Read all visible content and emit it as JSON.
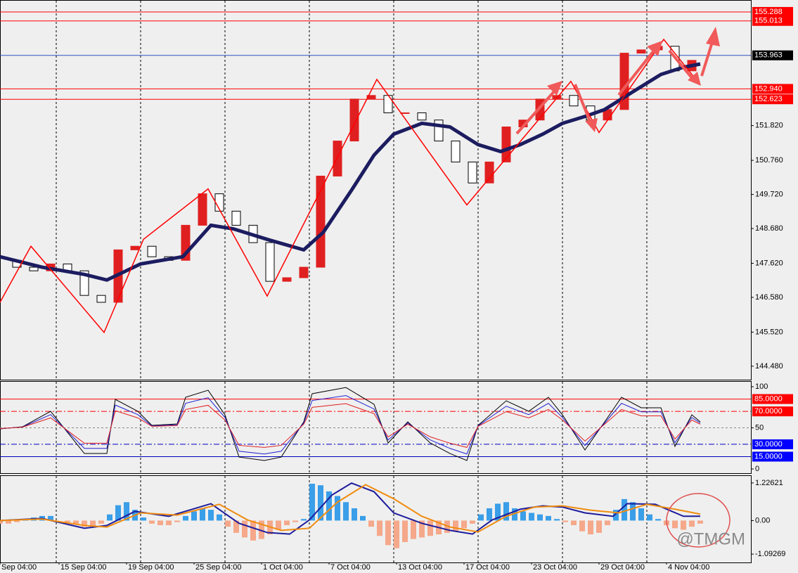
{
  "chart_data": [
    {
      "type": "candlestick",
      "x": [
        0,
        6,
        12,
        18,
        24,
        30,
        36,
        42,
        48,
        54,
        60,
        66,
        72,
        78,
        84,
        90,
        96,
        102,
        108,
        114,
        120,
        126,
        132,
        138,
        144,
        150,
        156,
        162,
        168,
        174,
        180,
        186,
        192,
        198,
        204,
        210,
        216,
        222,
        228,
        234,
        240,
        246
      ],
      "values": [
        147.71,
        147.5,
        147.39,
        147.6,
        147.39,
        146.64,
        146.43,
        148.03,
        148.14,
        147.82,
        147.71,
        148.78,
        149.74,
        149.21,
        148.78,
        148.25,
        147.07,
        147.18,
        147.5,
        150.28,
        151.35,
        152.63,
        152.74,
        152.21,
        152.21,
        151.99,
        151.35,
        150.71,
        150.07,
        150.71,
        151.78,
        151.99,
        152.63,
        152.74,
        152.42,
        151.99,
        152.31,
        154.03,
        154.13,
        154.24,
        153.49,
        153.81
      ],
      "up_color": "#e02020",
      "down_color": "#000000",
      "xlim": [
        0,
        267
      ],
      "ylim": [
        144.07,
        155.63
      ],
      "yticks": [
        {
          "value": 144.48,
          "label": "144.480"
        },
        {
          "value": 145.52,
          "label": "145.520"
        },
        {
          "value": 146.58,
          "label": "146.580"
        },
        {
          "value": 147.62,
          "label": "147.620"
        },
        {
          "value": 148.68,
          "label": "148.680"
        },
        {
          "value": 149.72,
          "label": "149.720"
        },
        {
          "value": 150.76,
          "label": "150.760"
        },
        {
          "value": 151.82,
          "label": "151.820"
        }
      ],
      "levels": [
        {
          "value": 155.288,
          "color": "#ff0000"
        },
        {
          "value": 155.013,
          "color": "#ff0000"
        },
        {
          "value": 153.963,
          "color": "#3050c0",
          "box": "#000000"
        },
        {
          "value": 152.94,
          "label": "152.940",
          "color": "#ff0000"
        },
        {
          "value": 152.623,
          "color": "#ff0000"
        }
      ],
      "ma": {
        "color": "#1c1c60",
        "x": [
          0,
          15,
          30,
          38,
          50,
          65,
          75,
          83,
          95,
          108,
          115,
          125,
          133,
          140,
          150,
          160,
          170,
          178,
          185,
          193,
          200,
          208,
          215,
          225,
          235,
          243,
          249
        ],
        "values": [
          147.82,
          147.5,
          147.28,
          147.11,
          147.6,
          147.82,
          148.78,
          148.67,
          148.35,
          148.03,
          148.57,
          149.85,
          150.92,
          151.56,
          151.89,
          151.78,
          151.24,
          151.03,
          151.24,
          151.56,
          151.89,
          152.1,
          152.31,
          152.85,
          153.38,
          153.6,
          153.7
        ]
      },
      "zigzag": {
        "color": "#ff0000",
        "x": [
          0,
          11,
          37,
          51,
          74,
          95,
          134,
          166,
          203,
          213,
          236,
          249
        ],
        "values": [
          146.43,
          148.14,
          145.51,
          148.35,
          149.89,
          146.62,
          153.23,
          149.4,
          153.17,
          151.61,
          154.45,
          153.06
        ]
      },
      "xgrid": [
        20,
        50,
        80,
        110,
        140,
        170,
        200,
        230
      ],
      "xticks": [
        {
          "value": 0,
          "label": "Sep 04:00"
        },
        {
          "value": 21,
          "label": "15 Sep 04:00"
        },
        {
          "value": 45,
          "label": "19 Sep 04:00"
        },
        {
          "value": 69,
          "label": "25 Sep 04:00"
        },
        {
          "value": 93,
          "label": "1 Oct 04:00"
        },
        {
          "value": 117,
          "label": "7 Oct 04:00"
        },
        {
          "value": 141,
          "label": "13 Oct 04:00"
        },
        {
          "value": 165,
          "label": "17 Oct 04:00"
        },
        {
          "value": 189,
          "label": "23 Oct 04:00"
        },
        {
          "value": 213,
          "label": "29 Oct 04:00"
        },
        {
          "value": 237,
          "label": "4 Nov 04:00"
        }
      ]
    },
    {
      "type": "line",
      "x": [
        0,
        8,
        18,
        25,
        30,
        38,
        41,
        49,
        54,
        63,
        66,
        74,
        80,
        85,
        94,
        100,
        108,
        111,
        123,
        133,
        138,
        145,
        153,
        160,
        166,
        170,
        180,
        188,
        195,
        200,
        208,
        215,
        221,
        228,
        235,
        240,
        246,
        249
      ],
      "series": [
        {
          "color": "#000000",
          "values": [
            48.7,
            51.3,
            70.1,
            40.2,
            18.8,
            18.8,
            84.6,
            70.1,
            53.0,
            54.7,
            87.2,
            95.7,
            65.8,
            14.5,
            10.3,
            14.5,
            57.3,
            91.5,
            99,
            78.6,
            31.6,
            57.3,
            31.6,
            18.8,
            10.3,
            53.0,
            82.9,
            70.1,
            87.2,
            65.8,
            23.1,
            57.3,
            87.2,
            74.4,
            74.4,
            27.4,
            65.8,
            57.3
          ]
        },
        {
          "color": "#2020d0",
          "values": [
            49.0,
            51.0,
            66.1,
            42.2,
            25.0,
            25.0,
            77.7,
            66.1,
            52.4,
            53.8,
            79.8,
            86.6,
            62.6,
            21.6,
            18.2,
            21.6,
            55.8,
            83.2,
            89.2,
            72.9,
            35.3,
            55.8,
            35.3,
            25.0,
            18.2,
            52.4,
            76.3,
            66.1,
            79.8,
            62.6,
            28.5,
            55.8,
            79.8,
            69.5,
            69.5,
            31.9,
            62.6,
            55.8
          ]
        },
        {
          "color": "#e02020",
          "values": [
            49.2,
            50.8,
            62.1,
            44.1,
            31.3,
            31.3,
            70.8,
            62.1,
            51.8,
            52.8,
            72.3,
            77.4,
            59.5,
            28.7,
            26.2,
            28.7,
            54.4,
            74.9,
            79.4,
            67.2,
            39.0,
            54.4,
            39.0,
            31.3,
            26.2,
            51.8,
            69.7,
            62.1,
            72.3,
            59.5,
            33.9,
            54.4,
            72.3,
            64.6,
            64.6,
            36.4,
            59.5,
            54.4
          ]
        }
      ],
      "ylim": [
        -5.1,
        106
      ],
      "yticks": [
        0,
        50,
        100
      ],
      "levels": [
        {
          "value": 85,
          "label": "85.0000",
          "color": "#ff0000",
          "box": "#ff0000"
        },
        {
          "value": 70,
          "label": "70.0000",
          "color": "#ff0000",
          "box": "#ff0000",
          "dash": "8 3 2 3"
        },
        {
          "value": 30,
          "label": "30.0000",
          "color": "#0000c0",
          "box": "#0000ff",
          "dash": "8 3 2 3"
        },
        {
          "value": 15,
          "label": "15.0000",
          "color": "#0000c0",
          "box": "#0000ff"
        }
      ]
    },
    {
      "type": "bar",
      "x": [
        0,
        3,
        6,
        9,
        12,
        15,
        18,
        21,
        24,
        27,
        30,
        33,
        36,
        39,
        42,
        45,
        48,
        51,
        54,
        57,
        60,
        63,
        66,
        69,
        72,
        75,
        78,
        81,
        84,
        87,
        90,
        93,
        96,
        99,
        102,
        105,
        108,
        111,
        114,
        117,
        120,
        123,
        126,
        129,
        132,
        135,
        138,
        141,
        144,
        147,
        150,
        153,
        156,
        159,
        162,
        165,
        168,
        171,
        174,
        177,
        180,
        183,
        186,
        189,
        192,
        195,
        198,
        201,
        204,
        207,
        210,
        213,
        216,
        219,
        222,
        225,
        228,
        231,
        234,
        237,
        240,
        243,
        246,
        249
      ],
      "values": [
        -0.1,
        -0.1,
        -0.05,
        0.05,
        0.1,
        0.15,
        0.15,
        0,
        -0.05,
        -0.1,
        -0.2,
        -0.2,
        -0.1,
        0.2,
        0.5,
        0.6,
        0.35,
        0.1,
        -0.1,
        -0.15,
        -0.15,
        -0.05,
        0.15,
        0.3,
        0.4,
        0.35,
        0.2,
        -0.2,
        -0.4,
        -0.55,
        -0.65,
        -0.6,
        -0.45,
        -0.3,
        -0.15,
        -0.05,
        0.05,
        1.2,
        1.15,
        0.95,
        0.8,
        0.6,
        0.4,
        0.15,
        -0.2,
        -0.5,
        -0.8,
        -0.9,
        -0.7,
        -0.6,
        -0.55,
        -0.5,
        -0.45,
        -0.4,
        -0.35,
        -0.25,
        -0.1,
        0.2,
        0.4,
        0.55,
        0.6,
        0.4,
        0.3,
        0.25,
        0.2,
        0.15,
        0.05,
        -0.05,
        -0.15,
        -0.35,
        -0.45,
        -0.4,
        -0.15,
        0.35,
        0.7,
        0.6,
        0.4,
        0.2,
        0.05,
        -0.15,
        -0.25,
        -0.3,
        -0.2,
        -0.1
      ],
      "pos_color": "#3a9ee8",
      "neg_color": "#f5a88a",
      "lines": [
        {
          "color": "#1c1c9c",
          "x": [
            0,
            15,
            30,
            38,
            48,
            60,
            75,
            85,
            95,
            103,
            110,
            118,
            125,
            133,
            140,
            150,
            160,
            168,
            175,
            185,
            193,
            200,
            208,
            218,
            223,
            233,
            243,
            249
          ],
          "values": [
            0,
            0.07,
            -0.25,
            -0.16,
            0.3,
            0.14,
            0.55,
            -0.09,
            -0.39,
            -0.44,
            0.02,
            0.83,
            1.22,
            0.94,
            0.25,
            -0.09,
            -0.32,
            -0.44,
            0.02,
            0.37,
            0.48,
            0.44,
            0.25,
            0.14,
            0.55,
            0.53,
            0.14,
            0.14
          ]
        },
        {
          "color": "#f08c10",
          "x": [
            0,
            15,
            30,
            38,
            50,
            63,
            78,
            88,
            100,
            110,
            120,
            130,
            140,
            150,
            160,
            170,
            180,
            190,
            200,
            210,
            220,
            230,
            240,
            249
          ],
          "values": [
            0,
            0.05,
            -0.16,
            -0.21,
            0.25,
            0.18,
            0.53,
            0.02,
            -0.32,
            -0.25,
            0.6,
            1.17,
            0.71,
            0.14,
            -0.21,
            -0.37,
            0.14,
            0.44,
            0.48,
            0.34,
            0.25,
            0.53,
            0.37,
            0.21
          ]
        }
      ],
      "ylim": [
        -1.365,
        1.453
      ],
      "yticks": [
        1.22621,
        {
          "value": 0,
          "label": "0.00"
        },
        -1.09269
      ]
    }
  ],
  "watermark": "@TMGM"
}
